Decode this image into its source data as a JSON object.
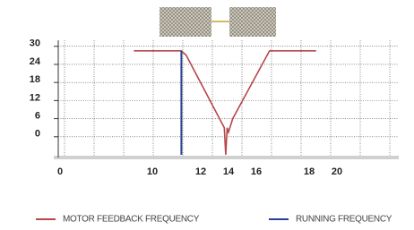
{
  "chart_data": {
    "type": "line",
    "xticks": [
      0,
      10,
      12,
      14,
      16,
      18,
      20
    ],
    "ylim": [
      -6,
      32
    ],
    "yticks": [
      0,
      6,
      12,
      18,
      24,
      30
    ],
    "grid": true,
    "series": [
      {
        "name": "MOTOR FEEDBACK FREQUENCY",
        "color": "#b5474b",
        "x": [
          8,
          11.2,
          11.4,
          13.7,
          13.8,
          13.9,
          14.0,
          14.3,
          16.5,
          18.5
        ],
        "values": [
          28.5,
          28.5,
          27,
          3,
          -6,
          3,
          1.5,
          6,
          28.5,
          28.5
        ]
      },
      {
        "name": "RUNNING FREQUENCY",
        "color": "#2b3f97",
        "x": [
          11.2,
          11.2
        ],
        "values": [
          28.5,
          -6
        ]
      }
    ]
  }
}
